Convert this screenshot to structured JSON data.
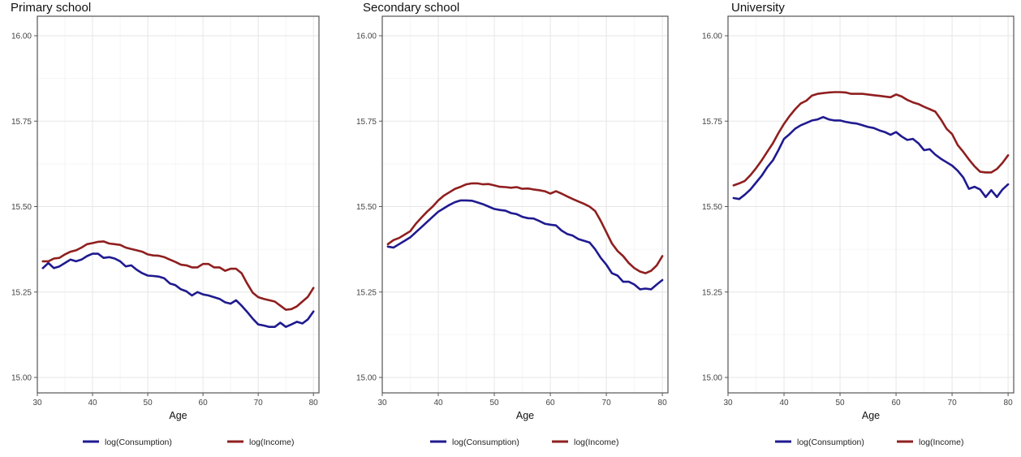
{
  "colors": {
    "consumption": "#1f1a8f",
    "income": "#8f1f1f"
  },
  "legend": {
    "consumption_label": "log(Consumption)",
    "income_label": "log(Income)"
  },
  "chart_data": [
    {
      "type": "line",
      "title": "Primary school",
      "xlabel": "Age",
      "ylabel": "",
      "xlim": [
        30,
        81
      ],
      "ylim": [
        15.0,
        16.0
      ],
      "x_ticks": [
        30,
        40,
        50,
        60,
        70,
        80
      ],
      "y_ticks": [
        "15.00",
        "15.25",
        "15.50",
        "15.75",
        "16.00"
      ],
      "grid": true,
      "legend_position": "bottom",
      "x": [
        31,
        32,
        33,
        34,
        35,
        36,
        37,
        38,
        39,
        40,
        41,
        42,
        43,
        44,
        45,
        46,
        47,
        48,
        49,
        50,
        51,
        52,
        53,
        54,
        55,
        56,
        57,
        58,
        59,
        60,
        61,
        62,
        63,
        64,
        65,
        66,
        67,
        68,
        69,
        70,
        71,
        72,
        73,
        74,
        75,
        76,
        77,
        78,
        79,
        80
      ],
      "series": [
        {
          "name": "log(Consumption)",
          "values": [
            15.32,
            15.335,
            15.32,
            15.325,
            15.335,
            15.345,
            15.34,
            15.345,
            15.355,
            15.362,
            15.362,
            15.35,
            15.352,
            15.348,
            15.34,
            15.325,
            15.328,
            15.315,
            15.305,
            15.298,
            15.297,
            15.295,
            15.29,
            15.275,
            15.27,
            15.258,
            15.252,
            15.24,
            15.25,
            15.243,
            15.24,
            15.235,
            15.23,
            15.22,
            15.216,
            15.226,
            15.21,
            15.192,
            15.172,
            15.155,
            15.152,
            15.148,
            15.148,
            15.16,
            15.148,
            15.155,
            15.163,
            15.158,
            15.17,
            15.193
          ]
        },
        {
          "name": "log(Income)",
          "values": [
            15.34,
            15.34,
            15.348,
            15.35,
            15.36,
            15.368,
            15.372,
            15.38,
            15.39,
            15.393,
            15.397,
            15.398,
            15.392,
            15.39,
            15.388,
            15.38,
            15.376,
            15.372,
            15.368,
            15.36,
            15.357,
            15.356,
            15.352,
            15.345,
            15.338,
            15.33,
            15.328,
            15.322,
            15.322,
            15.332,
            15.332,
            15.322,
            15.322,
            15.312,
            15.318,
            15.318,
            15.305,
            15.275,
            15.248,
            15.235,
            15.23,
            15.226,
            15.222,
            15.21,
            15.198,
            15.2,
            15.208,
            15.222,
            15.236,
            15.262
          ]
        }
      ]
    },
    {
      "type": "line",
      "title": "Secondary school",
      "xlabel": "Age",
      "ylabel": "",
      "xlim": [
        30,
        81
      ],
      "ylim": [
        15.0,
        16.0
      ],
      "x_ticks": [
        30,
        40,
        50,
        60,
        70,
        80
      ],
      "y_ticks": [
        "15.00",
        "15.25",
        "15.50",
        "15.75",
        "16.00"
      ],
      "grid": true,
      "legend_position": "bottom",
      "x": [
        31,
        32,
        33,
        34,
        35,
        36,
        37,
        38,
        39,
        40,
        41,
        42,
        43,
        44,
        45,
        46,
        47,
        48,
        49,
        50,
        51,
        52,
        53,
        54,
        55,
        56,
        57,
        58,
        59,
        60,
        61,
        62,
        63,
        64,
        65,
        66,
        67,
        68,
        69,
        70,
        71,
        72,
        73,
        74,
        75,
        76,
        77,
        78,
        79,
        80
      ],
      "series": [
        {
          "name": "log(Consumption)",
          "values": [
            15.383,
            15.38,
            15.39,
            15.4,
            15.41,
            15.425,
            15.44,
            15.455,
            15.47,
            15.485,
            15.495,
            15.505,
            15.513,
            15.518,
            15.518,
            15.517,
            15.512,
            15.507,
            15.5,
            15.493,
            15.49,
            15.488,
            15.481,
            15.478,
            15.47,
            15.466,
            15.465,
            15.458,
            15.45,
            15.447,
            15.445,
            15.43,
            15.42,
            15.415,
            15.405,
            15.4,
            15.395,
            15.375,
            15.35,
            15.33,
            15.305,
            15.298,
            15.28,
            15.28,
            15.272,
            15.258,
            15.26,
            15.258,
            15.272,
            15.285
          ]
        },
        {
          "name": "log(Income)",
          "values": [
            15.39,
            15.402,
            15.408,
            15.418,
            15.428,
            15.45,
            15.468,
            15.485,
            15.5,
            15.518,
            15.532,
            15.542,
            15.552,
            15.558,
            15.565,
            15.568,
            15.568,
            15.565,
            15.566,
            15.562,
            15.558,
            15.557,
            15.555,
            15.557,
            15.552,
            15.553,
            15.55,
            15.548,
            15.545,
            15.538,
            15.545,
            15.538,
            15.53,
            15.522,
            15.515,
            15.508,
            15.5,
            15.487,
            15.458,
            15.425,
            15.392,
            15.37,
            15.355,
            15.335,
            15.32,
            15.31,
            15.305,
            15.312,
            15.328,
            15.355
          ]
        }
      ]
    },
    {
      "type": "line",
      "title": "University",
      "xlabel": "Age",
      "ylabel": "",
      "xlim": [
        30,
        81
      ],
      "ylim": [
        15.0,
        16.0
      ],
      "x_ticks": [
        30,
        40,
        50,
        60,
        70,
        80
      ],
      "y_ticks": [
        "15.00",
        "15.25",
        "15.50",
        "15.75",
        "16.00"
      ],
      "grid": true,
      "legend_position": "bottom",
      "x": [
        31,
        32,
        33,
        34,
        35,
        36,
        37,
        38,
        39,
        40,
        41,
        42,
        43,
        44,
        45,
        46,
        47,
        48,
        49,
        50,
        51,
        52,
        53,
        54,
        55,
        56,
        57,
        58,
        59,
        60,
        61,
        62,
        63,
        64,
        65,
        66,
        67,
        68,
        69,
        70,
        71,
        72,
        73,
        74,
        75,
        76,
        77,
        78,
        79,
        80
      ],
      "series": [
        {
          "name": "log(Consumption)",
          "values": [
            15.525,
            15.522,
            15.535,
            15.55,
            15.57,
            15.59,
            15.615,
            15.635,
            15.665,
            15.698,
            15.712,
            15.728,
            15.738,
            15.745,
            15.752,
            15.755,
            15.762,
            15.755,
            15.752,
            15.752,
            15.748,
            15.745,
            15.743,
            15.738,
            15.733,
            15.73,
            15.723,
            15.718,
            15.71,
            15.718,
            15.705,
            15.695,
            15.698,
            15.685,
            15.665,
            15.668,
            15.652,
            15.64,
            15.63,
            15.62,
            15.605,
            15.585,
            15.552,
            15.558,
            15.55,
            15.528,
            15.548,
            15.528,
            15.55,
            15.565
          ]
        },
        {
          "name": "log(Income)",
          "values": [
            15.562,
            15.568,
            15.575,
            15.592,
            15.612,
            15.635,
            15.66,
            15.685,
            15.715,
            15.742,
            15.765,
            15.785,
            15.802,
            15.81,
            15.825,
            15.83,
            15.832,
            15.834,
            15.835,
            15.835,
            15.834,
            15.83,
            15.83,
            15.83,
            15.828,
            15.826,
            15.824,
            15.822,
            15.82,
            15.828,
            15.822,
            15.812,
            15.805,
            15.8,
            15.792,
            15.785,
            15.778,
            15.755,
            15.728,
            15.712,
            15.68,
            15.66,
            15.638,
            15.618,
            15.602,
            15.6,
            15.6,
            15.61,
            15.628,
            15.65
          ]
        }
      ]
    }
  ]
}
